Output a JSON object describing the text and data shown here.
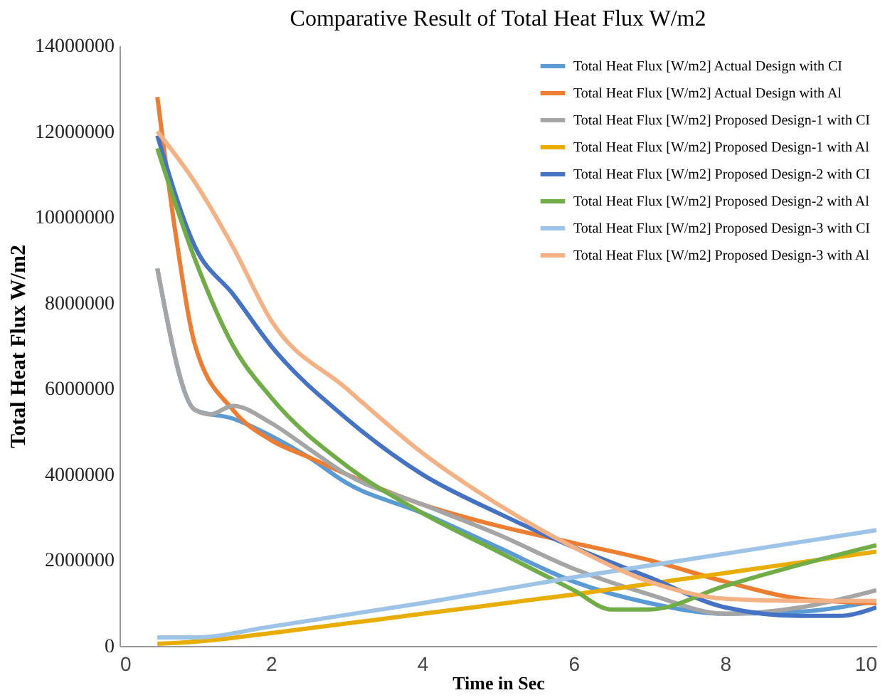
{
  "chart_data": {
    "type": "line",
    "title": "Comparative Result of Total Heat Flux W/m2",
    "xlabel": "Time in Sec",
    "ylabel": "Total Heat Flux W/m2",
    "xlim": [
      0,
      10
    ],
    "xticks": [
      0,
      2,
      4,
      6,
      8,
      10
    ],
    "ylim": [
      0,
      14000000
    ],
    "yticks": [
      0,
      2000000,
      4000000,
      6000000,
      8000000,
      10000000,
      12000000,
      14000000
    ],
    "grid": false,
    "legend": "top right",
    "marker": "none",
    "line_style": "solid",
    "series": [
      {
        "name": "Total Heat Flux [W/m2] Actual Design with CI",
        "color": "#5b9bd5",
        "x": [
          0.5,
          1,
          1.5,
          2,
          2.5,
          3,
          4,
          5,
          6,
          7,
          8,
          9,
          10
        ],
        "values": [
          8800000,
          5500000,
          5300000,
          4900000,
          4400000,
          3800000,
          3100000,
          2300000,
          1500000,
          1000000,
          750000,
          800000,
          1050000
        ]
      },
      {
        "name": "Total Heat Flux [W/m2] Actual Design with Al",
        "color": "#ed7d31",
        "x": [
          0.5,
          0.75,
          1,
          1.5,
          2,
          2.5,
          3,
          4,
          5,
          6,
          7,
          8,
          9,
          10
        ],
        "values": [
          12800000,
          9500000,
          7000000,
          5500000,
          4800000,
          4400000,
          4000000,
          3300000,
          2800000,
          2400000,
          2000000,
          1500000,
          1100000,
          1000000
        ]
      },
      {
        "name": "Total Heat Flux [W/m2] Proposed Design-1 with CI",
        "color": "#a5a5a5",
        "x": [
          0.5,
          1,
          1.2,
          1.5,
          2,
          2.5,
          3,
          4,
          5,
          6,
          7,
          8,
          9,
          10
        ],
        "values": [
          8800000,
          5500000,
          5400000,
          5600000,
          5200000,
          4600000,
          4000000,
          3300000,
          2600000,
          1800000,
          1200000,
          750000,
          900000,
          1300000
        ]
      },
      {
        "name": "Total Heat Flux [W/m2] Proposed Design-1 with Al",
        "color": "#e8ad00",
        "x": [
          0.5,
          1,
          2,
          4,
          6,
          8,
          10
        ],
        "values": [
          50000,
          100000,
          300000,
          750000,
          1200000,
          1700000,
          2200000
        ]
      },
      {
        "name": "Total Heat Flux [W/m2] Proposed Design-2 with CI",
        "color": "#4472c4",
        "x": [
          0.5,
          1,
          1.5,
          2,
          3,
          4,
          5,
          6,
          7,
          8,
          9,
          9.5,
          10
        ],
        "values": [
          11900000,
          9300000,
          8200000,
          7000000,
          5300000,
          4000000,
          3100000,
          2300000,
          1600000,
          900000,
          700000,
          700000,
          900000
        ]
      },
      {
        "name": "Total Heat Flux [W/m2] Proposed Design-2 with Al",
        "color": "#70ad47",
        "x": [
          0.5,
          1,
          1.5,
          2,
          3,
          4,
          5,
          6,
          6.5,
          7,
          8,
          9,
          10
        ],
        "values": [
          11600000,
          9000000,
          7000000,
          5800000,
          4200000,
          3100000,
          2200000,
          1300000,
          850000,
          850000,
          1400000,
          1900000,
          2350000
        ]
      },
      {
        "name": "Total Heat Flux [W/m2] Proposed Design-3 with CI",
        "color": "#9dc3e6",
        "x": [
          0.5,
          1,
          2,
          4,
          6,
          8,
          10
        ],
        "values": [
          200000,
          200000,
          450000,
          1000000,
          1600000,
          2150000,
          2700000
        ]
      },
      {
        "name": "Total Heat Flux [W/m2] Proposed Design-3 with Al",
        "color": "#f4b183",
        "x": [
          0.5,
          1,
          1.5,
          2,
          3,
          4,
          5,
          6,
          7,
          8,
          9,
          10
        ],
        "values": [
          12000000,
          10800000,
          9300000,
          7600000,
          6000000,
          4500000,
          3300000,
          2300000,
          1500000,
          1100000,
          1050000,
          1050000
        ]
      }
    ]
  }
}
